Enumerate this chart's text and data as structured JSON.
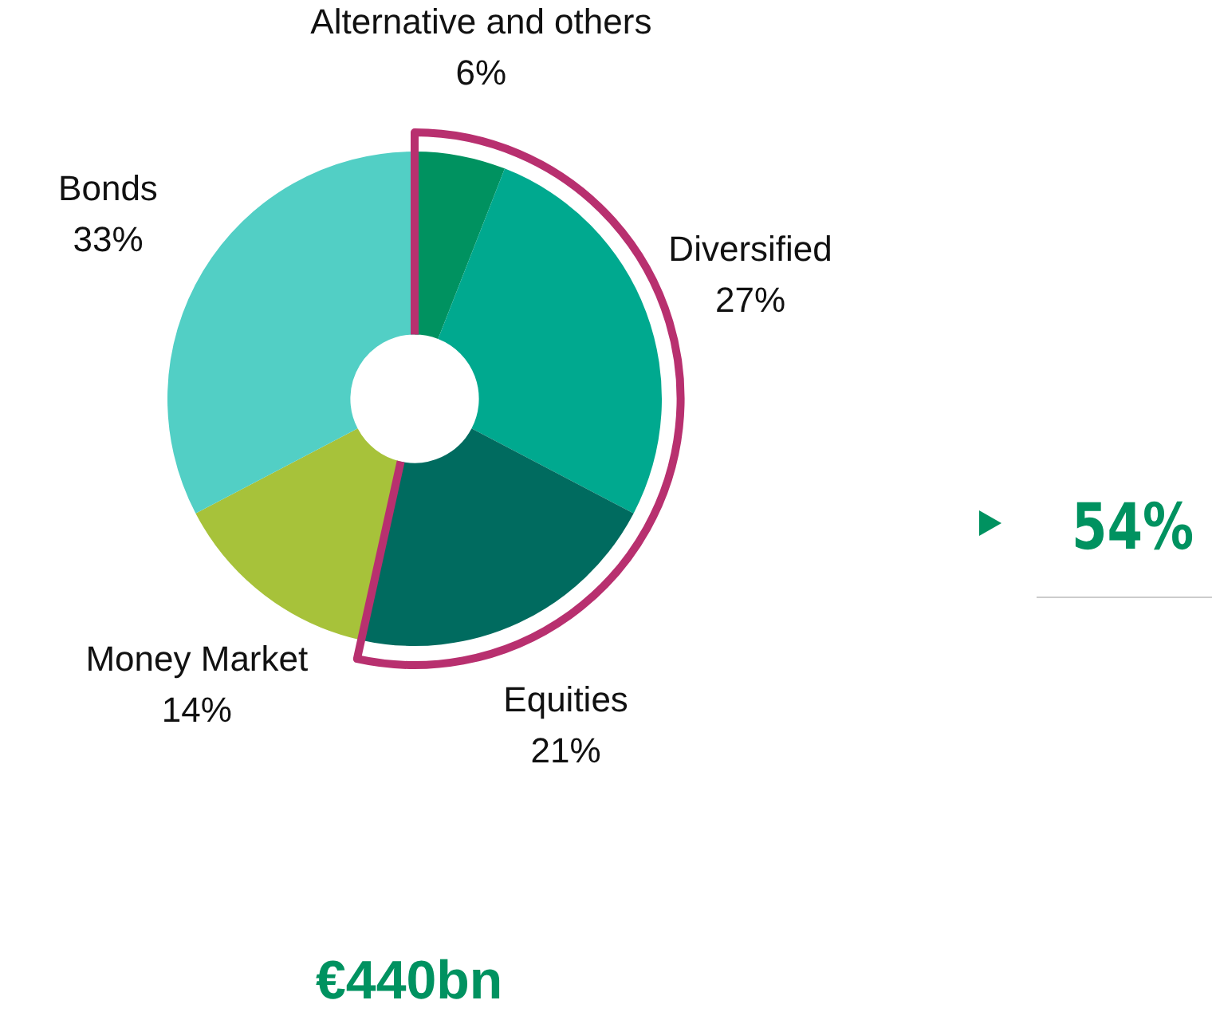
{
  "chart_data": {
    "type": "donut",
    "categories": [
      "Alternative and others",
      "Diversified",
      "Equities",
      "Money Market",
      "Bonds"
    ],
    "values": [
      6,
      27,
      21,
      14,
      33
    ],
    "colors": [
      "#009260",
      "#00a98f",
      "#006b5f",
      "#a7c23a",
      "#52cfc5"
    ],
    "value_labels": [
      "6%",
      "27%",
      "21%",
      "14%",
      "33%"
    ],
    "legend": false,
    "annotations": [
      "54%",
      "€440bn"
    ]
  }
}
